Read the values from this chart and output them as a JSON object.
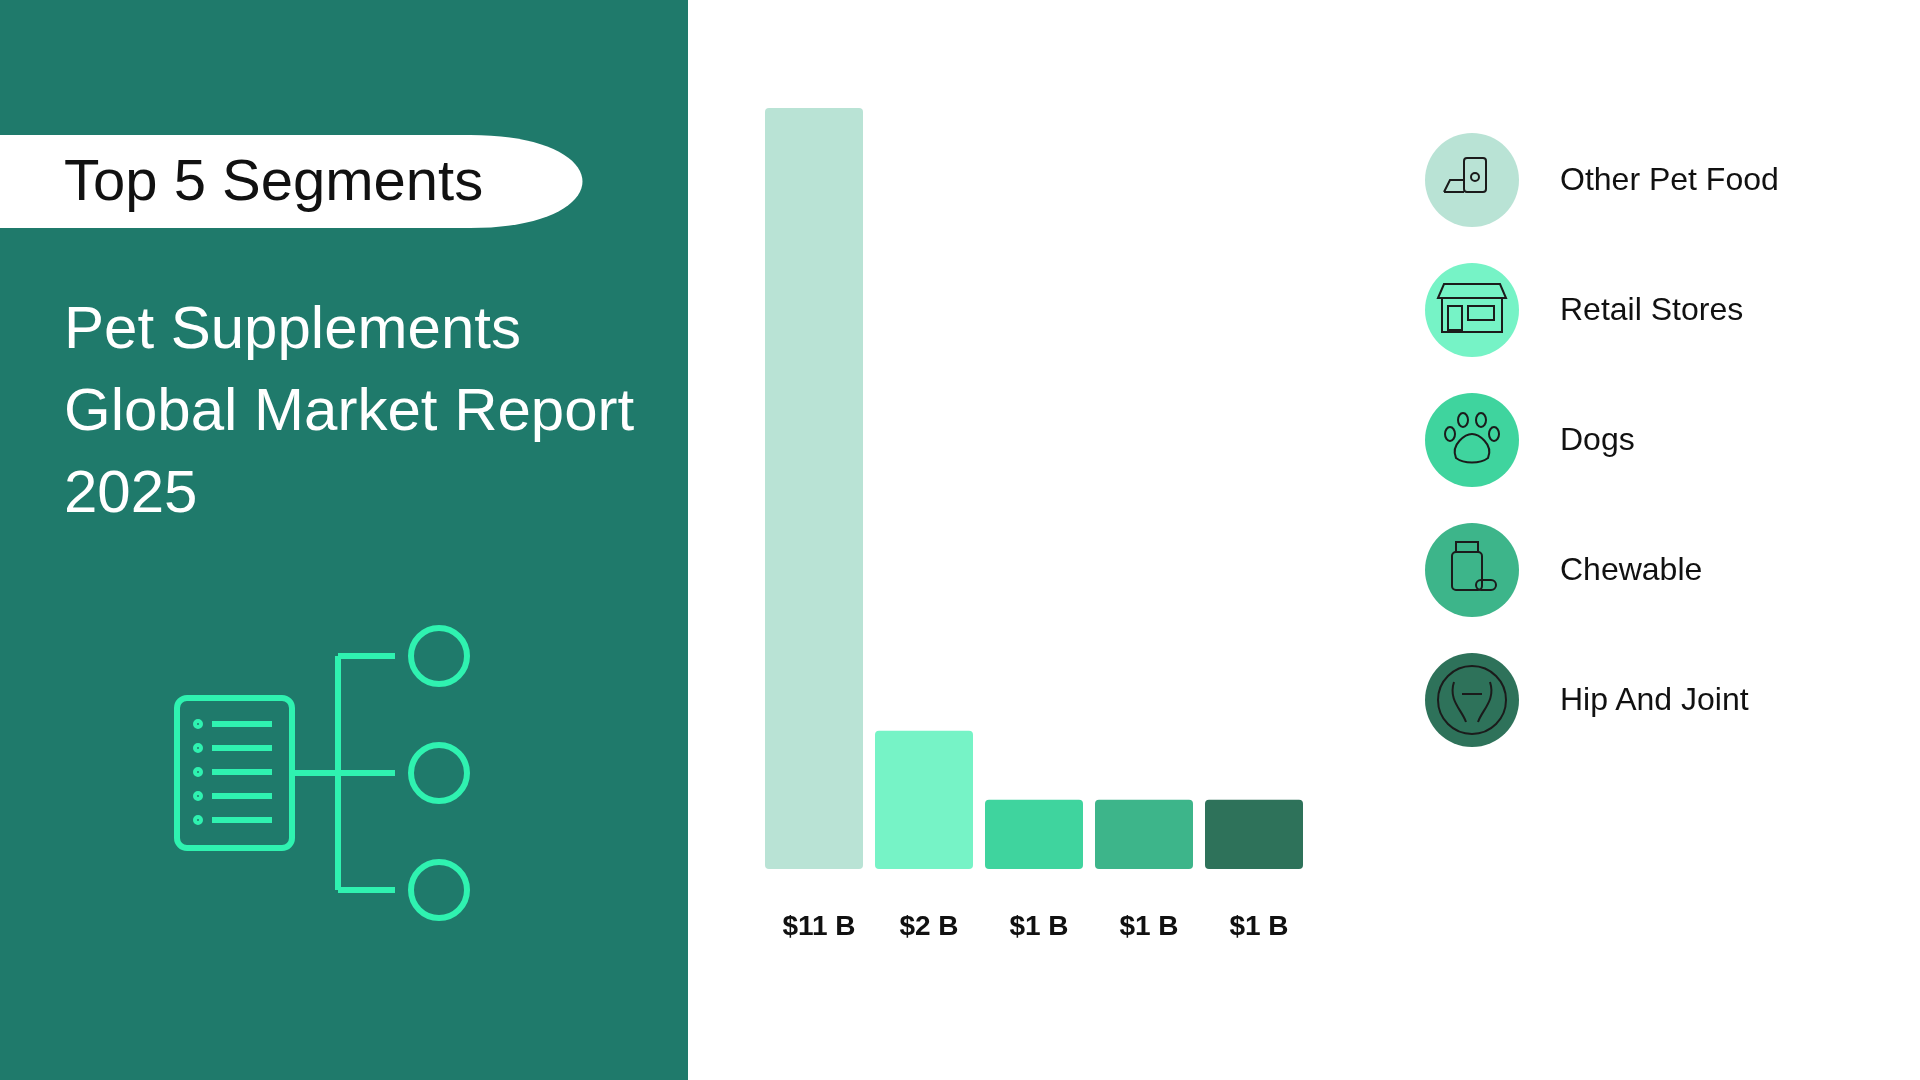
{
  "chart_data": {
    "type": "bar",
    "title": "Top 5 Segments",
    "subtitle": "Pet Supplements Global Market Report 2025",
    "categories": [
      null,
      null,
      null,
      null,
      null
    ],
    "values": [
      11,
      2,
      1,
      1,
      1
    ],
    "colors": [
      "#b9e3d5",
      "#76f3c6",
      "#3fd49e",
      "#3db58a",
      "#2e725a"
    ],
    "value_labels": [
      "$11 B",
      "$2 B",
      "$1 B",
      "$1 B",
      "$1 B"
    ],
    "annotations": [
      "Other Pet Food",
      "Retail Stores",
      "Dogs",
      "Chewable",
      "Hip And Joint"
    ]
  }
}
